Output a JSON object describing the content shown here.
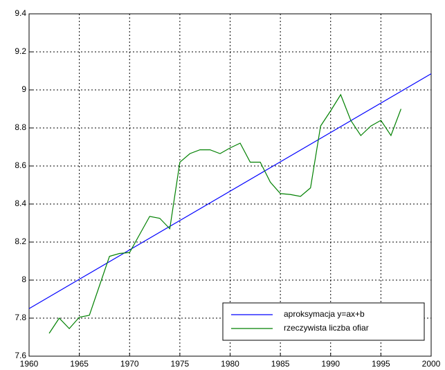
{
  "chart_data": {
    "type": "line",
    "xlim": [
      1960,
      2000
    ],
    "xticks": [
      1960,
      1965,
      1970,
      1975,
      1980,
      1985,
      1990,
      1995,
      2000
    ],
    "ylim": [
      7.6,
      9.4
    ],
    "yticks": [
      7.6,
      7.8,
      8,
      8.2,
      8.4,
      8.6,
      8.8,
      9,
      9.2,
      9.4
    ],
    "grid": true,
    "legend": "lower right",
    "series": [
      {
        "name": "aproksymacja y=ax+b",
        "color": "#0000ff",
        "x": [
          1960,
          2000
        ],
        "values": [
          7.85,
          9.085
        ]
      },
      {
        "name": "rzeczywista liczba ofiar",
        "color": "#008000",
        "x": [
          1962,
          1963,
          1964,
          1965,
          1966,
          1967,
          1968,
          1969,
          1970,
          1971,
          1972,
          1973,
          1974,
          1975,
          1976,
          1977,
          1978,
          1979,
          1980,
          1981,
          1982,
          1983,
          1984,
          1985,
          1986,
          1987,
          1988,
          1989,
          1990,
          1991,
          1992,
          1993,
          1994,
          1995,
          1996,
          1997
        ],
        "values": [
          7.72,
          7.8,
          7.745,
          7.805,
          7.815,
          7.97,
          8.125,
          8.14,
          8.145,
          8.24,
          8.335,
          8.325,
          8.27,
          8.62,
          8.665,
          8.685,
          8.685,
          8.665,
          8.695,
          8.72,
          8.62,
          8.62,
          8.515,
          8.455,
          8.45,
          8.44,
          8.485,
          8.81,
          8.89,
          8.975,
          8.84,
          8.76,
          8.81,
          8.84,
          8.76,
          8.9
        ]
      }
    ]
  }
}
